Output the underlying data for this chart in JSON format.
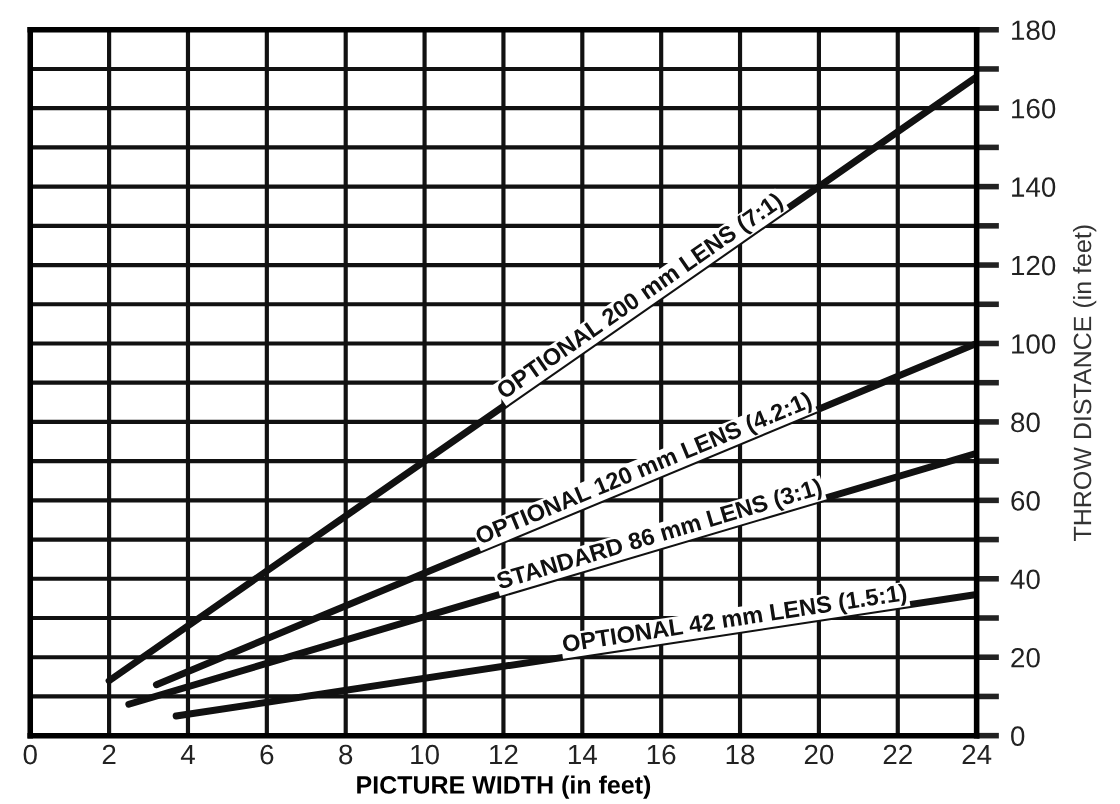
{
  "chart_data": {
    "type": "line",
    "xlabel": "PICTURE WIDTH (in feet)",
    "ylabel": "THROW DISTANCE (in feet)",
    "xlim": [
      0,
      24
    ],
    "xticks": [
      0,
      2,
      4,
      6,
      8,
      10,
      12,
      14,
      16,
      18,
      20,
      22,
      24
    ],
    "ylim": [
      0,
      180
    ],
    "yticks": [
      0,
      {
        "value": 10,
        "label": null
      },
      20,
      {
        "value": 30,
        "label": null
      },
      40,
      {
        "value": 50,
        "label": null
      },
      60,
      {
        "value": 70,
        "label": null
      },
      80,
      {
        "value": 90,
        "label": null
      },
      100,
      {
        "value": 110,
        "label": null
      },
      120,
      {
        "value": 130,
        "label": null
      },
      140,
      {
        "value": 150,
        "label": null
      },
      160,
      {
        "value": 170,
        "label": null
      },
      180
    ],
    "grid": true,
    "legend": false,
    "marker": "none",
    "line_style": "solid",
    "series": [
      {
        "name": "OPTIONAL 200 mm LENS (7:1)",
        "color": "#111111",
        "x": [
          2,
          24
        ],
        "values": [
          14,
          168
        ]
      },
      {
        "name": "OPTIONAL 120 mm LENS (4.2:1)",
        "color": "#111111",
        "x": [
          3.2,
          24
        ],
        "values": [
          13,
          100
        ]
      },
      {
        "name": "STANDARD 86 mm LENS (3:1)",
        "color": "#111111",
        "x": [
          2.5,
          24
        ],
        "values": [
          8,
          72
        ]
      },
      {
        "name": "OPTIONAL 42 mm LENS (1.5:1)",
        "color": "#111111",
        "x": [
          3.7,
          24
        ],
        "values": [
          5,
          36
        ]
      }
    ]
  }
}
